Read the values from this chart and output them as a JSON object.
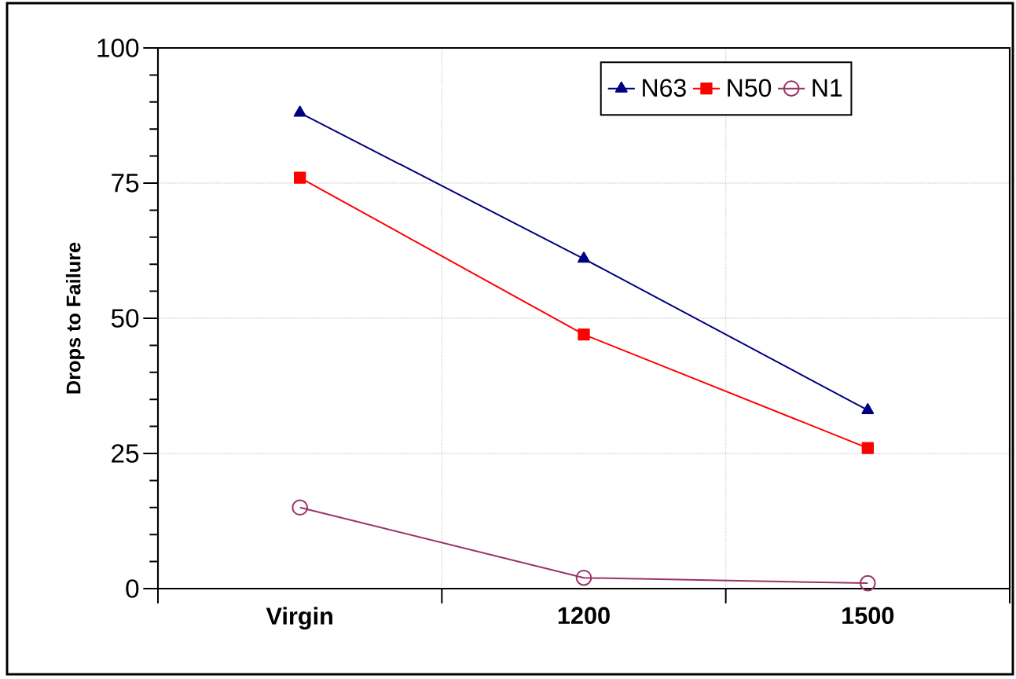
{
  "chart_data": {
    "type": "line",
    "ylabel": "Drops to Failure",
    "categories": [
      "Virgin",
      "1200",
      "1500"
    ],
    "series": [
      {
        "name": "N63",
        "color": "#000080",
        "marker": "triangle",
        "values": [
          88,
          61,
          33
        ]
      },
      {
        "name": "N50",
        "color": "#ff0000",
        "marker": "square",
        "values": [
          76,
          47,
          26
        ]
      },
      {
        "name": "N1",
        "color": "#993366",
        "marker": "circle",
        "values": [
          15,
          2,
          1
        ]
      }
    ],
    "ylim": [
      0,
      100
    ],
    "yticks": [
      0,
      25,
      50,
      75,
      100
    ],
    "grid": true,
    "legend": "top right",
    "line_style": "solid"
  }
}
